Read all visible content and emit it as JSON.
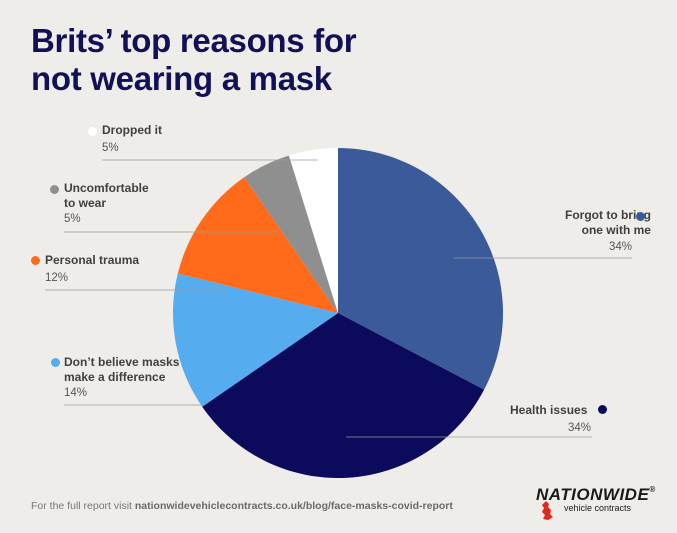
{
  "title": {
    "line1": "Brits’ top reasons for",
    "line2": "not wearing a mask"
  },
  "chart_data": {
    "type": "pie",
    "title": "Brits’ top reasons for not wearing a mask",
    "unit": "%",
    "slices": [
      {
        "label": "Forgot to bring one with me",
        "label_lines": [
          "Forgot to bring",
          "one with me"
        ],
        "value": 34,
        "value_label": "34%",
        "color": "#3b5a99"
      },
      {
        "label": "Health issues",
        "label_lines": [
          "Health issues"
        ],
        "value": 34,
        "value_label": "34%",
        "color": "#0b0a5c"
      },
      {
        "label": "Don't believe masks make a difference",
        "label_lines": [
          "Don’t believe masks",
          "make a difference"
        ],
        "value": 14,
        "value_label": "14%",
        "color": "#55acee"
      },
      {
        "label": "Personal trauma",
        "label_lines": [
          "Personal trauma"
        ],
        "value": 12,
        "value_label": "12%",
        "color": "#ff6b1a"
      },
      {
        "label": "Uncomfortable to wear",
        "label_lines": [
          "Uncomfortable",
          "to wear"
        ],
        "value": 5,
        "value_label": "5%",
        "color": "#8f8f8f"
      },
      {
        "label": "Dropped it",
        "label_lines": [
          "Dropped it"
        ],
        "value": 5,
        "value_label": "5%",
        "color": "#ffffff"
      }
    ]
  },
  "footer": {
    "prefix": "For the full report visit ",
    "link": "nationwidevehiclecontracts.co.uk/blog/face-masks-covid-report"
  },
  "logo": {
    "name": "NATIONWIDE",
    "registered": "®",
    "tagline": "vehicle contracts"
  },
  "colors": {
    "title": "#121057",
    "background": "#efedea",
    "leader_line": "#9a9a9a"
  }
}
